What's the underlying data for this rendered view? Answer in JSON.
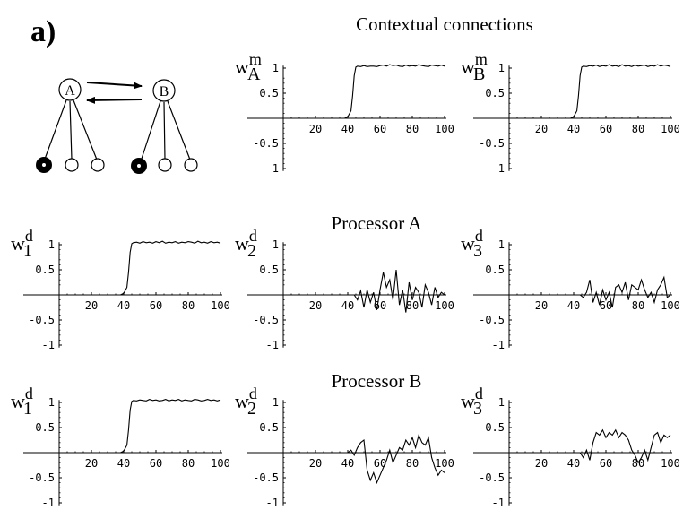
{
  "figure": {
    "panel_label": "a)",
    "section_titles": [
      "Contextual connections",
      "Processor A",
      "Processor B"
    ]
  },
  "diagram": {
    "nodes": [
      "A",
      "B"
    ]
  },
  "chart_data": [
    {
      "type": "line",
      "label_base": "w",
      "label_sup": "m",
      "label_sub": "A",
      "xlim": [
        0,
        100
      ],
      "ylim": [
        -1,
        1
      ],
      "xticks": [
        "20",
        "40",
        "60",
        "80",
        "100"
      ],
      "yticks": [
        "1",
        "0.5",
        "-0.5",
        "-1"
      ],
      "series": [
        {
          "x": [
            0,
            38,
            40,
            42,
            43,
            44,
            45,
            46,
            48,
            50,
            52,
            54,
            56,
            58,
            60,
            62,
            64,
            66,
            68,
            70,
            72,
            74,
            76,
            78,
            80,
            82,
            84,
            86,
            88,
            90,
            92,
            94,
            96,
            98,
            100
          ],
          "y": [
            0,
            0,
            0.03,
            0.15,
            0.45,
            0.85,
            1.02,
            1.04,
            1.03,
            1.05,
            1.03,
            1.04,
            1.04,
            1.03,
            1.05,
            1.06,
            1.04,
            1.07,
            1.05,
            1.06,
            1.04,
            1.03,
            1.06,
            1.04,
            1.05,
            1.04,
            1.07,
            1.05,
            1.04,
            1.03,
            1.06,
            1.05,
            1.04,
            1.06,
            1.04
          ]
        }
      ]
    },
    {
      "type": "line",
      "label_base": "w",
      "label_sup": "m",
      "label_sub": "B",
      "xlim": [
        0,
        100
      ],
      "ylim": [
        -1,
        1
      ],
      "xticks": [
        "20",
        "40",
        "60",
        "80",
        "100"
      ],
      "yticks": [
        "1",
        "0.5",
        "-0.5",
        "-1"
      ],
      "series": [
        {
          "x": [
            0,
            38,
            40,
            42,
            43,
            44,
            45,
            46,
            48,
            50,
            52,
            54,
            56,
            58,
            60,
            62,
            64,
            66,
            68,
            70,
            72,
            74,
            76,
            78,
            80,
            82,
            84,
            86,
            88,
            90,
            92,
            94,
            96,
            98,
            100
          ],
          "y": [
            0,
            0,
            0.03,
            0.15,
            0.45,
            0.85,
            1.02,
            1.04,
            1.03,
            1.05,
            1.04,
            1.06,
            1.03,
            1.05,
            1.04,
            1.07,
            1.04,
            1.05,
            1.03,
            1.07,
            1.04,
            1.05,
            1.03,
            1.06,
            1.04,
            1.05,
            1.06,
            1.03,
            1.05,
            1.04,
            1.07,
            1.04,
            1.06,
            1.05,
            1.03
          ]
        }
      ]
    },
    {
      "type": "line",
      "label_base": "w",
      "label_sup": "d",
      "label_sub": "1",
      "xlim": [
        0,
        100
      ],
      "ylim": [
        -1,
        1
      ],
      "xticks": [
        "20",
        "40",
        "60",
        "80",
        "100"
      ],
      "yticks": [
        "1",
        "0.5",
        "-0.5",
        "-1"
      ],
      "series": [
        {
          "x": [
            0,
            38,
            40,
            42,
            43,
            44,
            45,
            46,
            48,
            50,
            52,
            54,
            56,
            58,
            60,
            62,
            64,
            66,
            68,
            70,
            72,
            74,
            76,
            78,
            80,
            82,
            84,
            86,
            88,
            90,
            92,
            94,
            96,
            98,
            100
          ],
          "y": [
            0,
            0,
            0.03,
            0.15,
            0.45,
            0.85,
            1.02,
            1.04,
            1.05,
            1.03,
            1.06,
            1.04,
            1.05,
            1.03,
            1.06,
            1.04,
            1.07,
            1.03,
            1.05,
            1.04,
            1.06,
            1.03,
            1.05,
            1.04,
            1.06,
            1.05,
            1.03,
            1.07,
            1.04,
            1.05,
            1.03,
            1.06,
            1.04,
            1.05,
            1.03
          ]
        }
      ]
    },
    {
      "type": "line",
      "label_base": "w",
      "label_sup": "d",
      "label_sub": "2",
      "xlim": [
        0,
        100
      ],
      "ylim": [
        -1,
        1
      ],
      "xticks": [
        "20",
        "40",
        "60",
        "80",
        "100"
      ],
      "yticks": [
        "1",
        "0.5",
        "-0.5",
        "-1"
      ],
      "series": [
        {
          "x": [
            0,
            44,
            46,
            48,
            50,
            52,
            54,
            56,
            58,
            60,
            62,
            64,
            66,
            68,
            70,
            72,
            74,
            76,
            78,
            80,
            82,
            84,
            86,
            88,
            90,
            92,
            94,
            96,
            98,
            100
          ],
          "y": [
            0,
            0,
            -0.1,
            0.08,
            -0.25,
            0.1,
            -0.15,
            0.05,
            -0.3,
            0.1,
            0.45,
            0.15,
            0.3,
            -0.1,
            0.5,
            -0.2,
            0.1,
            -0.35,
            0.25,
            -0.1,
            0.15,
            0.05,
            -0.25,
            0.2,
            0.05,
            -0.2,
            0.15,
            -0.05,
            0.05,
            0
          ]
        }
      ]
    },
    {
      "type": "line",
      "label_base": "w",
      "label_sup": "d",
      "label_sub": "3",
      "xlim": [
        0,
        100
      ],
      "ylim": [
        -1,
        1
      ],
      "xticks": [
        "20",
        "40",
        "60",
        "80",
        "100"
      ],
      "yticks": [
        "1",
        "0.5",
        "-0.5",
        "-1"
      ],
      "series": [
        {
          "x": [
            0,
            44,
            46,
            48,
            50,
            52,
            54,
            56,
            58,
            60,
            62,
            64,
            66,
            68,
            70,
            72,
            74,
            76,
            78,
            80,
            82,
            84,
            86,
            88,
            90,
            92,
            94,
            96,
            98,
            100
          ],
          "y": [
            0,
            0,
            -0.05,
            0.05,
            0.3,
            -0.15,
            0.05,
            -0.2,
            0.1,
            -0.1,
            0.05,
            -0.25,
            0.15,
            0.2,
            0.05,
            0.25,
            -0.1,
            0.2,
            0.15,
            0.1,
            0.3,
            0.1,
            -0.05,
            0.05,
            -0.15,
            0.1,
            0.2,
            0.35,
            -0.05,
            0
          ]
        }
      ]
    },
    {
      "type": "line",
      "label_base": "w",
      "label_sup": "d",
      "label_sub": "1",
      "xlim": [
        0,
        100
      ],
      "ylim": [
        -1,
        1
      ],
      "xticks": [
        "20",
        "40",
        "60",
        "80",
        "100"
      ],
      "yticks": [
        "1",
        "0.5",
        "-0.5",
        "-1"
      ],
      "series": [
        {
          "x": [
            0,
            38,
            40,
            42,
            43,
            44,
            45,
            46,
            48,
            50,
            52,
            54,
            56,
            58,
            60,
            62,
            64,
            66,
            68,
            70,
            72,
            74,
            76,
            78,
            80,
            82,
            84,
            86,
            88,
            90,
            92,
            94,
            96,
            98,
            100
          ],
          "y": [
            0,
            0,
            0.03,
            0.15,
            0.45,
            0.85,
            1.02,
            1.04,
            1.03,
            1.05,
            1.04,
            1.03,
            1.06,
            1.04,
            1.05,
            1.03,
            1.04,
            1.06,
            1.03,
            1.05,
            1.04,
            1.06,
            1.03,
            1.05,
            1.04,
            1.03,
            1.06,
            1.05,
            1.03,
            1.04,
            1.06,
            1.04,
            1.05,
            1.03,
            1.05
          ]
        }
      ]
    },
    {
      "type": "line",
      "label_base": "w",
      "label_sup": "d",
      "label_sub": "2",
      "xlim": [
        0,
        100
      ],
      "ylim": [
        -1,
        1
      ],
      "xticks": [
        "20",
        "40",
        "60",
        "80",
        "100"
      ],
      "yticks": [
        "1",
        "0.5",
        "-0.5",
        "-1"
      ],
      "series": [
        {
          "x": [
            0,
            40,
            42,
            44,
            46,
            48,
            50,
            52,
            54,
            56,
            58,
            60,
            62,
            64,
            66,
            68,
            70,
            72,
            74,
            76,
            78,
            80,
            82,
            84,
            86,
            88,
            90,
            92,
            94,
            96,
            98,
            100
          ],
          "y": [
            0,
            0,
            0.05,
            -0.05,
            0.1,
            0.2,
            0.25,
            -0.35,
            -0.55,
            -0.4,
            -0.6,
            -0.45,
            -0.3,
            -0.15,
            0.05,
            -0.2,
            -0.05,
            0.1,
            0.05,
            0.25,
            0.15,
            0.3,
            0.1,
            0.35,
            0.2,
            0.15,
            0.3,
            -0.1,
            -0.3,
            -0.45,
            -0.35,
            -0.4
          ]
        }
      ]
    },
    {
      "type": "line",
      "label_base": "w",
      "label_sup": "d",
      "label_sub": "3",
      "xlim": [
        0,
        100
      ],
      "ylim": [
        -1,
        1
      ],
      "xticks": [
        "20",
        "40",
        "60",
        "80",
        "100"
      ],
      "yticks": [
        "1",
        "0.5",
        "-0.5",
        "-1"
      ],
      "series": [
        {
          "x": [
            0,
            44,
            46,
            48,
            50,
            52,
            54,
            56,
            58,
            60,
            62,
            64,
            66,
            68,
            70,
            72,
            74,
            76,
            78,
            80,
            82,
            84,
            86,
            88,
            90,
            92,
            94,
            96,
            98,
            100
          ],
          "y": [
            0,
            0,
            -0.1,
            0.05,
            -0.15,
            0.2,
            0.4,
            0.35,
            0.45,
            0.3,
            0.4,
            0.35,
            0.45,
            0.3,
            0.4,
            0.35,
            0.25,
            0.05,
            -0.05,
            -0.2,
            -0.1,
            0.05,
            -0.15,
            0.1,
            0.35,
            0.4,
            0.2,
            0.35,
            0.3,
            0.35
          ]
        }
      ]
    }
  ]
}
